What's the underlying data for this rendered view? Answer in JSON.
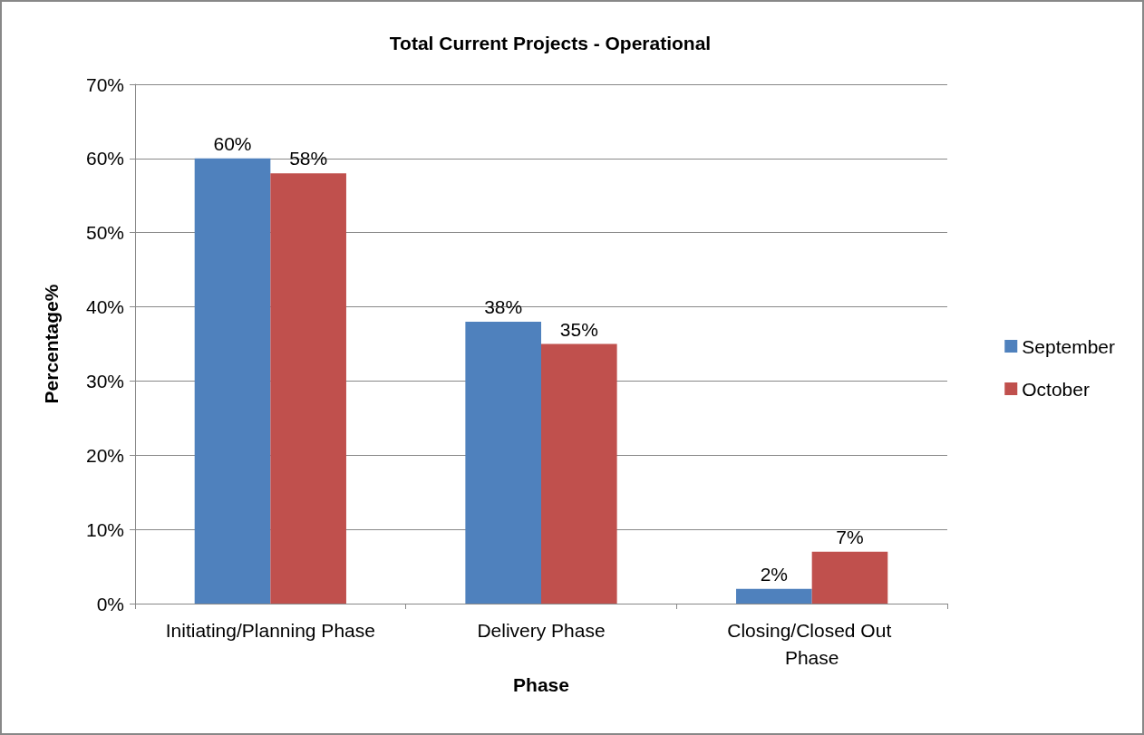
{
  "chart_data": {
    "type": "bar",
    "title": "Total Current Projects - Operational",
    "xlabel": "Phase",
    "ylabel": "Percentage%",
    "categories": [
      "Initiating/Planning Phase",
      "Delivery Phase",
      "Closing/Closed Out Phase"
    ],
    "series": [
      {
        "name": "September",
        "color": "#4f81bd",
        "values": [
          60,
          38,
          2
        ],
        "value_labels": [
          "60%",
          "38%",
          "2%"
        ]
      },
      {
        "name": "October",
        "color": "#c0504d",
        "values": [
          58,
          35,
          7
        ],
        "value_labels": [
          "58%",
          "35%",
          "7%"
        ]
      }
    ],
    "ylim": [
      0,
      70
    ],
    "yticks": [
      {
        "value": 0,
        "label": "0%"
      },
      {
        "value": 10,
        "label": "10%"
      },
      {
        "value": 20,
        "label": "20%"
      },
      {
        "value": 30,
        "label": "30%"
      },
      {
        "value": 40,
        "label": "40%"
      },
      {
        "value": 50,
        "label": "50%"
      },
      {
        "value": 60,
        "label": "60%"
      },
      {
        "value": 70,
        "label": "70%"
      }
    ],
    "grid": "y",
    "legend": "right"
  }
}
